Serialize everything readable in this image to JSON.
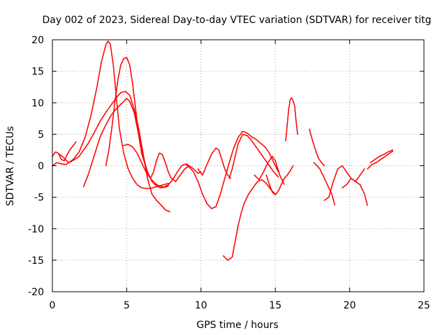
{
  "chart_data": {
    "type": "scatter",
    "title": "Day 002 of 2023, Sidereal Day-to-day VTEC variation (SDTVAR) for receiver titg",
    "xlabel": "GPS time / hours",
    "ylabel": "SDTVAR / TECUs",
    "xlim": [
      0,
      25
    ],
    "ylim": [
      -20,
      20
    ],
    "xticks": [
      0,
      5,
      10,
      15,
      20,
      25
    ],
    "yticks": [
      -20,
      -15,
      -10,
      -5,
      0,
      5,
      10,
      15,
      20
    ],
    "grid": true,
    "marker": "+",
    "color": "#ff0000",
    "series": [
      {
        "name": "s1",
        "x": [
          0.0,
          0.2,
          0.4,
          0.6,
          0.8,
          1.0,
          1.2,
          1.4,
          1.6
        ],
        "y": [
          1.5,
          2.2,
          2.0,
          1.0,
          0.8,
          1.8,
          2.6,
          3.2,
          3.8
        ]
      },
      {
        "name": "s2",
        "x": [
          0.0,
          0.3,
          0.6,
          0.9,
          1.2,
          1.5,
          1.8,
          2.0,
          2.4,
          2.8,
          3.2,
          3.6,
          4.0,
          4.3,
          4.6,
          4.9,
          5.2,
          5.5,
          5.8,
          6.1,
          6.4,
          6.7,
          7.0,
          7.3,
          7.6,
          7.9
        ],
        "y": [
          0.0,
          0.5,
          0.3,
          0.2,
          0.6,
          1.0,
          1.5,
          2.2,
          3.5,
          5.2,
          7.0,
          8.5,
          9.8,
          10.8,
          11.6,
          11.8,
          11.2,
          9.0,
          6.0,
          2.0,
          -2.0,
          -4.5,
          -5.5,
          -6.2,
          -7.0,
          -7.3
        ]
      },
      {
        "name": "s3",
        "x": [
          0.5,
          0.8,
          1.1,
          1.4,
          1.8,
          2.2,
          2.6,
          3.0,
          3.3,
          3.6,
          3.75,
          3.9,
          4.1,
          4.3,
          4.5,
          4.8,
          5.1,
          5.4,
          5.7,
          6.0,
          6.3,
          6.6,
          6.9,
          7.2,
          7.5,
          7.8
        ],
        "y": [
          1.8,
          1.2,
          0.5,
          1.0,
          2.2,
          4.5,
          8.0,
          12.5,
          16.5,
          19.2,
          19.8,
          19.3,
          16.0,
          11.0,
          6.0,
          2.0,
          -0.5,
          -2.0,
          -3.0,
          -3.5,
          -3.6,
          -3.6,
          -3.4,
          -3.2,
          -3.0,
          -2.8
        ]
      },
      {
        "name": "s4",
        "x": [
          2.1,
          2.4,
          2.8,
          3.2,
          3.6,
          4.0,
          4.4,
          4.8,
          5.0,
          5.2,
          5.5,
          5.8,
          6.1,
          6.4,
          6.7,
          7.0,
          7.3,
          7.6,
          7.8
        ],
        "y": [
          -3.3,
          -1.5,
          1.5,
          4.5,
          6.5,
          8.2,
          9.3,
          10.2,
          10.7,
          10.2,
          8.5,
          5.0,
          1.5,
          -1.0,
          -2.5,
          -3.2,
          -3.5,
          -3.4,
          -3.2
        ]
      },
      {
        "name": "s5",
        "x": [
          3.6,
          3.8,
          4.0,
          4.2,
          4.4,
          4.6,
          4.8,
          5.0,
          5.2,
          5.4,
          5.6,
          5.8,
          6.0,
          6.2,
          6.4,
          6.6,
          6.8,
          7.0,
          7.2,
          7.4,
          7.6,
          7.8,
          8.0,
          8.3,
          8.6,
          8.9,
          9.2,
          9.5,
          9.8,
          10.0
        ],
        "y": [
          0.0,
          2.5,
          6.0,
          10.0,
          13.5,
          16.0,
          17.0,
          17.2,
          16.0,
          13.0,
          9.0,
          5.0,
          2.0,
          0.5,
          -1.0,
          -2.0,
          -1.0,
          0.8,
          2.0,
          1.8,
          0.5,
          -1.0,
          -2.0,
          -2.5,
          -1.5,
          -0.5,
          0.0,
          -0.5,
          -1.2,
          -1.0
        ]
      },
      {
        "name": "s6",
        "x": [
          4.8,
          5.1,
          5.4,
          5.7,
          6.0,
          6.3,
          6.6,
          6.9,
          7.2,
          7.5,
          7.8,
          8.1,
          8.4,
          8.7,
          9.0,
          9.2
        ],
        "y": [
          3.2,
          3.4,
          3.0,
          2.0,
          0.5,
          -1.0,
          -2.0,
          -2.8,
          -3.2,
          -3.4,
          -3.0,
          -2.2,
          -1.0,
          0.0,
          0.3,
          0.0
        ]
      },
      {
        "name": "s7",
        "x": [
          9.0,
          9.2,
          9.5,
          9.8,
          10.1,
          10.4,
          10.7,
          11.0,
          11.3,
          11.6,
          11.9,
          12.2,
          12.5,
          12.8,
          13.1,
          13.4,
          13.7,
          14.0,
          14.3,
          14.6,
          14.9,
          15.2
        ],
        "y": [
          0.2,
          -0.2,
          -1.0,
          -2.5,
          -4.5,
          -6.0,
          -6.8,
          -6.5,
          -4.5,
          -2.0,
          0.5,
          2.8,
          4.5,
          5.5,
          5.2,
          4.6,
          4.2,
          3.6,
          3.0,
          2.0,
          0.5,
          -1.0
        ]
      },
      {
        "name": "s8",
        "x": [
          9.8,
          10.1,
          10.4,
          10.7,
          11.0,
          11.2,
          11.4,
          11.6,
          11.8,
          12.0
        ],
        "y": [
          -0.5,
          -1.5,
          0.2,
          1.8,
          2.8,
          2.5,
          1.0,
          -0.5,
          -1.5,
          -2.0
        ]
      },
      {
        "name": "s9",
        "x": [
          11.9,
          12.1,
          12.3,
          12.5,
          12.8,
          13.1,
          13.4,
          13.7,
          14.0,
          14.3,
          14.6,
          14.9,
          15.2
        ],
        "y": [
          -2.0,
          -0.5,
          1.5,
          3.5,
          5.0,
          4.8,
          4.0,
          3.0,
          2.0,
          1.0,
          0.0,
          -1.0,
          -1.8
        ]
      },
      {
        "name": "s10",
        "x": [
          11.5,
          11.8,
          12.1,
          12.3,
          12.5,
          12.7,
          12.9,
          13.2,
          13.5,
          13.8,
          14.1,
          14.4,
          14.7,
          15.0
        ],
        "y": [
          -14.3,
          -15.0,
          -14.5,
          -12.0,
          -9.5,
          -7.5,
          -6.0,
          -4.5,
          -3.5,
          -2.5,
          -2.2,
          -2.8,
          -3.8,
          -4.5
        ]
      },
      {
        "name": "s11",
        "x": [
          13.6,
          13.9,
          14.2,
          14.5,
          14.8,
          15.0,
          15.3,
          15.6
        ],
        "y": [
          -1.5,
          -2.2,
          -1.0,
          0.5,
          1.5,
          0.8,
          -1.5,
          -3.0
        ]
      },
      {
        "name": "s12",
        "x": [
          14.4,
          14.6,
          14.8,
          15.0,
          15.2,
          15.4,
          15.6,
          15.8,
          16.0,
          16.2
        ],
        "y": [
          -1.5,
          -3.0,
          -4.2,
          -4.6,
          -4.0,
          -3.0,
          -2.0,
          -1.5,
          -0.8,
          0.0
        ]
      },
      {
        "name": "s13",
        "x": [
          15.7,
          15.8,
          15.9,
          16.0,
          16.1,
          16.2,
          16.3,
          16.4,
          16.5
        ],
        "y": [
          4.0,
          6.5,
          9.0,
          10.5,
          10.8,
          10.3,
          9.5,
          7.0,
          5.0
        ]
      },
      {
        "name": "s14",
        "x": [
          17.3,
          17.5,
          17.7,
          17.9,
          18.1,
          18.3
        ],
        "y": [
          5.8,
          4.0,
          2.5,
          1.2,
          0.5,
          0.0
        ]
      },
      {
        "name": "s15",
        "x": [
          17.6,
          17.8,
          18.0,
          18.2,
          18.4,
          18.6,
          18.8,
          19.0
        ],
        "y": [
          0.5,
          0.0,
          -0.5,
          -1.5,
          -2.5,
          -3.5,
          -4.5,
          -6.2
        ]
      },
      {
        "name": "s16",
        "x": [
          18.3,
          18.6,
          18.9,
          19.2,
          19.5,
          19.8,
          20.1,
          20.4,
          20.7,
          21.0
        ],
        "y": [
          -5.5,
          -5.0,
          -2.5,
          -0.5,
          0.0,
          -1.0,
          -2.0,
          -2.5,
          -1.5,
          -0.5
        ]
      },
      {
        "name": "s17",
        "x": [
          19.5,
          19.8,
          20.1,
          20.4,
          20.7,
          21.0,
          21.2
        ],
        "y": [
          -3.5,
          -3.0,
          -2.0,
          -2.5,
          -3.0,
          -4.5,
          -6.3
        ]
      },
      {
        "name": "s18",
        "x": [
          21.2,
          21.5,
          21.8,
          22.1,
          22.4,
          22.7,
          22.9
        ],
        "y": [
          -0.5,
          0.2,
          0.5,
          1.0,
          1.5,
          2.0,
          2.3
        ]
      },
      {
        "name": "s19",
        "x": [
          21.4,
          21.7,
          22.0,
          22.3,
          22.6,
          22.9
        ],
        "y": [
          0.5,
          1.0,
          1.5,
          1.8,
          2.2,
          2.5
        ]
      }
    ]
  }
}
